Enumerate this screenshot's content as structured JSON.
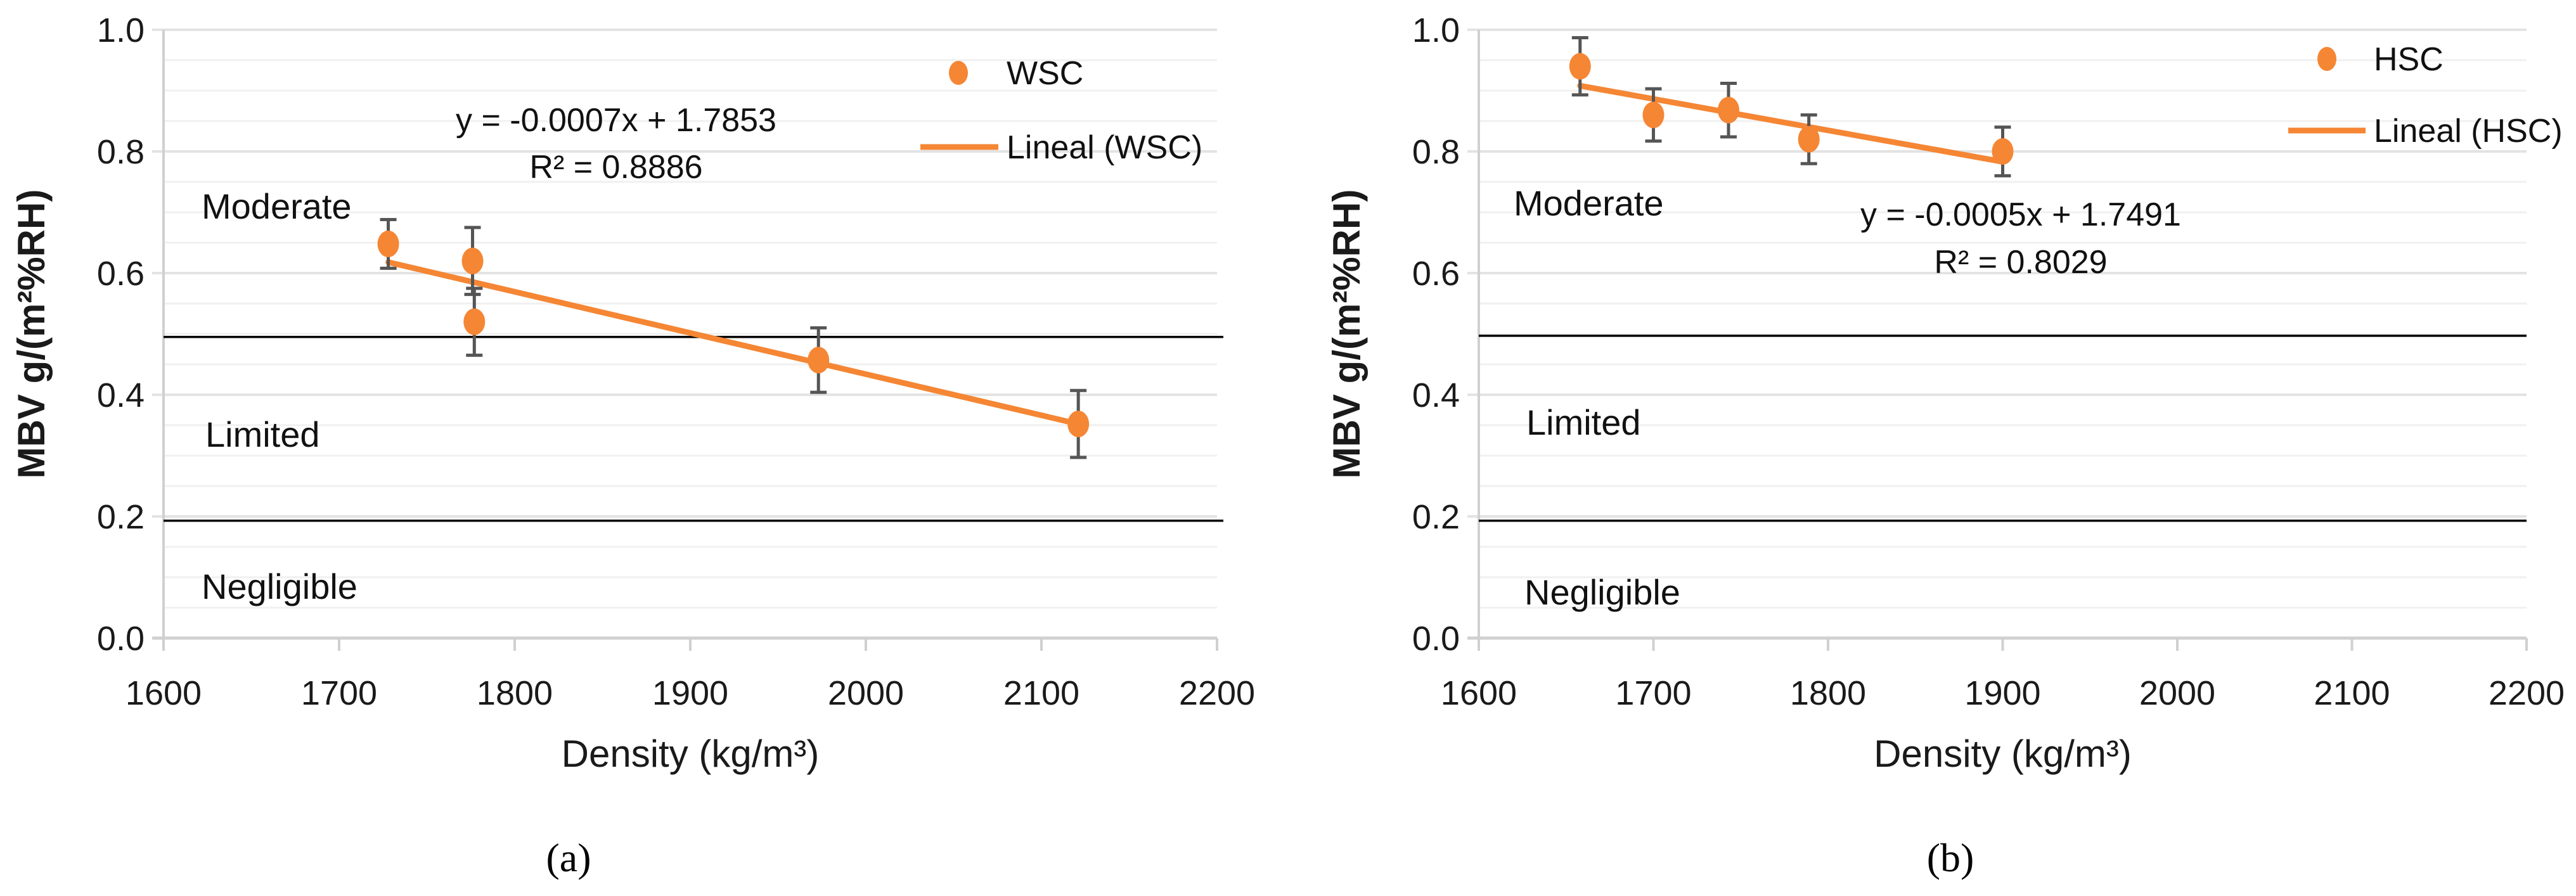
{
  "colors": {
    "series": "#f58634",
    "error_bar": "#555555",
    "threshold": "#000000",
    "grid": "#e3e3e3"
  },
  "chart_data": [
    {
      "type": "scatter",
      "caption": "(a)",
      "xlabel": "Density (kg/m³)",
      "ylabel": "MBV  g/(m²%RH)",
      "xlim": [
        1600,
        2200
      ],
      "ylim": [
        0.0,
        1.0
      ],
      "xticks": [
        "1600",
        "1700",
        "1800",
        "1900",
        "2000",
        "2100",
        "2200"
      ],
      "yticks": [
        "0.0",
        "0.2",
        "0.4",
        "0.6",
        "0.8",
        "1.0"
      ],
      "grid": true,
      "legend_placement": "top-right",
      "series": [
        {
          "name": "WSC",
          "x": [
            1728,
            1776,
            1777,
            1973,
            2121
          ],
          "y": [
            0.648,
            0.62,
            0.52,
            0.457,
            0.352
          ],
          "error": [
            0.04,
            0.055,
            0.055,
            0.053,
            0.055
          ]
        }
      ],
      "trendline": {
        "name": "Lineal (WSC)",
        "x": [
          1728,
          2121
        ],
        "y": [
          0.618,
          0.352
        ],
        "equation": "y = -0.0007x + 1.7853",
        "r2": "R² = 0.8886"
      },
      "thresholds": [
        0.495,
        0.193
      ],
      "zones": [
        "Moderate",
        "Limited",
        "Negligible"
      ]
    },
    {
      "type": "scatter",
      "caption": "(b)",
      "xlabel": "Density (kg/m³)",
      "ylabel": "MBV  g/(m²%RH)",
      "xlim": [
        1600,
        2200
      ],
      "ylim": [
        0.0,
        1.0
      ],
      "xticks": [
        "1600",
        "1700",
        "1800",
        "1900",
        "2000",
        "2100",
        "2200"
      ],
      "yticks": [
        "0.0",
        "0.2",
        "0.4",
        "0.6",
        "0.8",
        "1.0"
      ],
      "grid": true,
      "legend_placement": "top-right",
      "series": [
        {
          "name": "HSC",
          "x": [
            1658,
            1700,
            1743,
            1789,
            1900
          ],
          "y": [
            0.94,
            0.86,
            0.868,
            0.82,
            0.8
          ],
          "error": [
            0.047,
            0.043,
            0.044,
            0.04,
            0.04
          ]
        }
      ],
      "trendline": {
        "name": "Lineal (HSC)",
        "x": [
          1658,
          1900
        ],
        "y": [
          0.908,
          0.783
        ],
        "equation": "y = -0.0005x + 1.7491",
        "r2": "R² = 0.8029"
      },
      "thresholds": [
        0.497,
        0.193
      ],
      "zones": [
        "Moderate",
        "Limited",
        "Negligible"
      ]
    }
  ]
}
